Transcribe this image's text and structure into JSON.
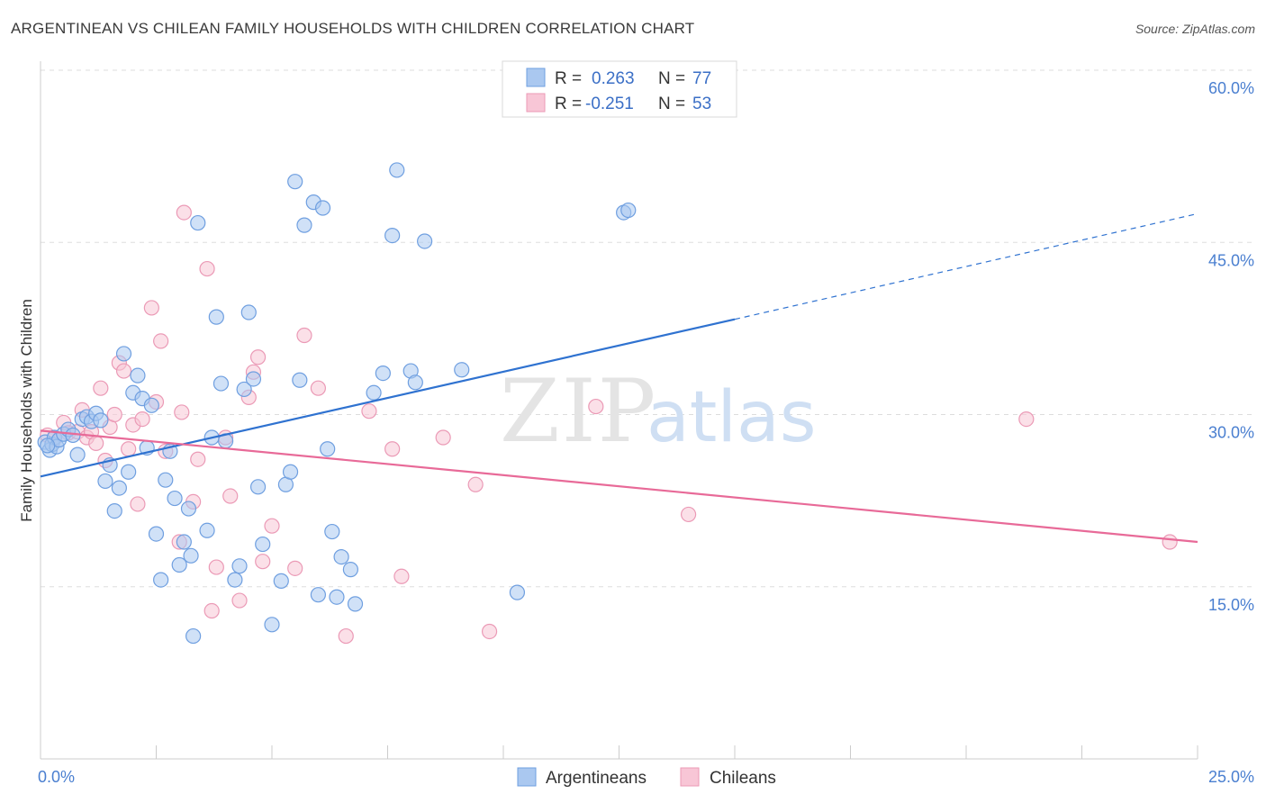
{
  "title": "ARGENTINEAN VS CHILEAN FAMILY HOUSEHOLDS WITH CHILDREN CORRELATION CHART",
  "source": "Source: ZipAtlas.com",
  "watermark": {
    "zip": "ZIP",
    "atlas": "atlas"
  },
  "colors": {
    "blue_fill": "#aac8f0",
    "blue_stroke": "#6f9fe0",
    "blue_line": "#2f72d0",
    "pink_fill": "#f8c6d6",
    "pink_stroke": "#eb9ab6",
    "pink_line": "#e86a98",
    "grid": "#dddddd",
    "axis": "#cccccc",
    "tick_text": "#4a7fd0"
  },
  "legend": {
    "rows": [
      {
        "r_label": "R =",
        "r_value": "0.263",
        "n_label": "N =",
        "n_value": "77",
        "color": "blue"
      },
      {
        "r_label": "R =",
        "r_value": "-0.251",
        "n_label": "N =",
        "n_value": "53",
        "color": "pink"
      }
    ]
  },
  "bottom_legend": [
    "Argentineans",
    "Chileans"
  ],
  "chart_data": {
    "type": "scatter",
    "xlabel": "",
    "ylabel": "Family Households with Children",
    "xlim": [
      0,
      25
    ],
    "ylim": [
      0,
      60
    ],
    "x_tick_labels": [
      "0.0%",
      "25.0%"
    ],
    "y_ticks": [
      15,
      30,
      45,
      60
    ],
    "y_tick_labels": [
      "15.0%",
      "30.0%",
      "45.0%",
      "60.0%"
    ],
    "grid": true,
    "series": [
      {
        "name": "Argentineans",
        "color": "blue",
        "trend": {
          "x0": 0,
          "y0": 24.6,
          "x1": 15,
          "y1": 38.3,
          "dashed_to_x": 25,
          "dashed_to_y": 47.5
        },
        "points": [
          [
            0.1,
            27.6
          ],
          [
            0.2,
            26.9
          ],
          [
            0.25,
            27.4
          ],
          [
            0.3,
            28.0
          ],
          [
            0.35,
            27.2
          ],
          [
            0.4,
            27.8
          ],
          [
            0.5,
            28.3
          ],
          [
            0.6,
            28.7
          ],
          [
            0.7,
            28.2
          ],
          [
            0.8,
            26.5
          ],
          [
            0.9,
            29.6
          ],
          [
            1.0,
            29.8
          ],
          [
            1.1,
            29.4
          ],
          [
            1.2,
            30.1
          ],
          [
            1.3,
            29.5
          ],
          [
            1.4,
            24.2
          ],
          [
            1.5,
            25.6
          ],
          [
            1.6,
            21.6
          ],
          [
            1.7,
            23.6
          ],
          [
            1.8,
            35.3
          ],
          [
            1.9,
            25.0
          ],
          [
            2.0,
            31.9
          ],
          [
            2.1,
            33.4
          ],
          [
            2.2,
            31.4
          ],
          [
            2.3,
            27.1
          ],
          [
            2.4,
            30.8
          ],
          [
            2.5,
            19.6
          ],
          [
            2.6,
            15.6
          ],
          [
            2.7,
            24.3
          ],
          [
            2.8,
            26.8
          ],
          [
            2.9,
            22.7
          ],
          [
            3.0,
            16.9
          ],
          [
            3.1,
            18.9
          ],
          [
            3.2,
            21.8
          ],
          [
            3.25,
            17.7
          ],
          [
            3.3,
            10.7
          ],
          [
            3.4,
            46.7
          ],
          [
            3.6,
            19.9
          ],
          [
            3.7,
            28.0
          ],
          [
            3.8,
            38.5
          ],
          [
            3.9,
            32.7
          ],
          [
            4.0,
            27.7
          ],
          [
            4.2,
            15.6
          ],
          [
            4.3,
            16.8
          ],
          [
            4.4,
            32.2
          ],
          [
            4.5,
            38.9
          ],
          [
            4.6,
            33.1
          ],
          [
            4.7,
            23.7
          ],
          [
            4.8,
            18.7
          ],
          [
            5.0,
            11.7
          ],
          [
            5.2,
            15.5
          ],
          [
            5.3,
            23.9
          ],
          [
            5.4,
            25.0
          ],
          [
            5.5,
            50.3
          ],
          [
            5.6,
            33.0
          ],
          [
            5.7,
            46.5
          ],
          [
            5.9,
            48.5
          ],
          [
            6.0,
            14.3
          ],
          [
            6.1,
            48.0
          ],
          [
            6.2,
            27.0
          ],
          [
            6.3,
            19.8
          ],
          [
            6.4,
            14.1
          ],
          [
            6.5,
            17.6
          ],
          [
            6.7,
            16.5
          ],
          [
            6.8,
            13.5
          ],
          [
            7.2,
            31.9
          ],
          [
            7.4,
            33.6
          ],
          [
            7.6,
            45.6
          ],
          [
            7.7,
            51.3
          ],
          [
            8.0,
            33.8
          ],
          [
            8.1,
            32.8
          ],
          [
            8.3,
            45.1
          ],
          [
            9.1,
            33.9
          ],
          [
            10.3,
            14.5
          ],
          [
            12.6,
            47.6
          ],
          [
            12.7,
            47.8
          ],
          [
            0.15,
            27.3
          ]
        ]
      },
      {
        "name": "Chileans",
        "color": "pink",
        "trend": {
          "x0": 0,
          "y0": 28.6,
          "x1": 25,
          "y1": 18.9
        },
        "points": [
          [
            0.3,
            27.9
          ],
          [
            0.5,
            29.3
          ],
          [
            0.6,
            28.4
          ],
          [
            0.8,
            28.5
          ],
          [
            0.9,
            30.4
          ],
          [
            1.0,
            28.0
          ],
          [
            1.1,
            28.5
          ],
          [
            1.2,
            27.5
          ],
          [
            1.3,
            32.3
          ],
          [
            1.4,
            26.0
          ],
          [
            1.5,
            28.9
          ],
          [
            1.6,
            30.0
          ],
          [
            1.7,
            34.5
          ],
          [
            1.8,
            33.8
          ],
          [
            1.9,
            27.0
          ],
          [
            2.0,
            29.1
          ],
          [
            2.1,
            22.2
          ],
          [
            2.2,
            29.6
          ],
          [
            2.4,
            39.3
          ],
          [
            2.5,
            31.1
          ],
          [
            2.6,
            36.4
          ],
          [
            2.7,
            26.8
          ],
          [
            3.0,
            18.9
          ],
          [
            3.05,
            30.2
          ],
          [
            3.1,
            47.6
          ],
          [
            3.3,
            22.4
          ],
          [
            3.4,
            26.1
          ],
          [
            3.6,
            42.7
          ],
          [
            3.7,
            12.9
          ],
          [
            3.8,
            16.7
          ],
          [
            4.0,
            28.0
          ],
          [
            4.1,
            22.9
          ],
          [
            4.3,
            13.8
          ],
          [
            4.5,
            31.5
          ],
          [
            4.6,
            33.7
          ],
          [
            4.7,
            35.0
          ],
          [
            4.8,
            17.2
          ],
          [
            5.0,
            20.3
          ],
          [
            5.5,
            16.6
          ],
          [
            5.7,
            36.9
          ],
          [
            6.0,
            32.3
          ],
          [
            6.6,
            10.7
          ],
          [
            7.1,
            30.3
          ],
          [
            7.6,
            27.0
          ],
          [
            7.8,
            15.9
          ],
          [
            8.7,
            28.0
          ],
          [
            9.4,
            23.9
          ],
          [
            9.7,
            11.1
          ],
          [
            12.0,
            30.7
          ],
          [
            14.0,
            21.3
          ],
          [
            21.3,
            29.6
          ],
          [
            24.4,
            18.9
          ],
          [
            0.15,
            28.2
          ]
        ]
      }
    ]
  }
}
